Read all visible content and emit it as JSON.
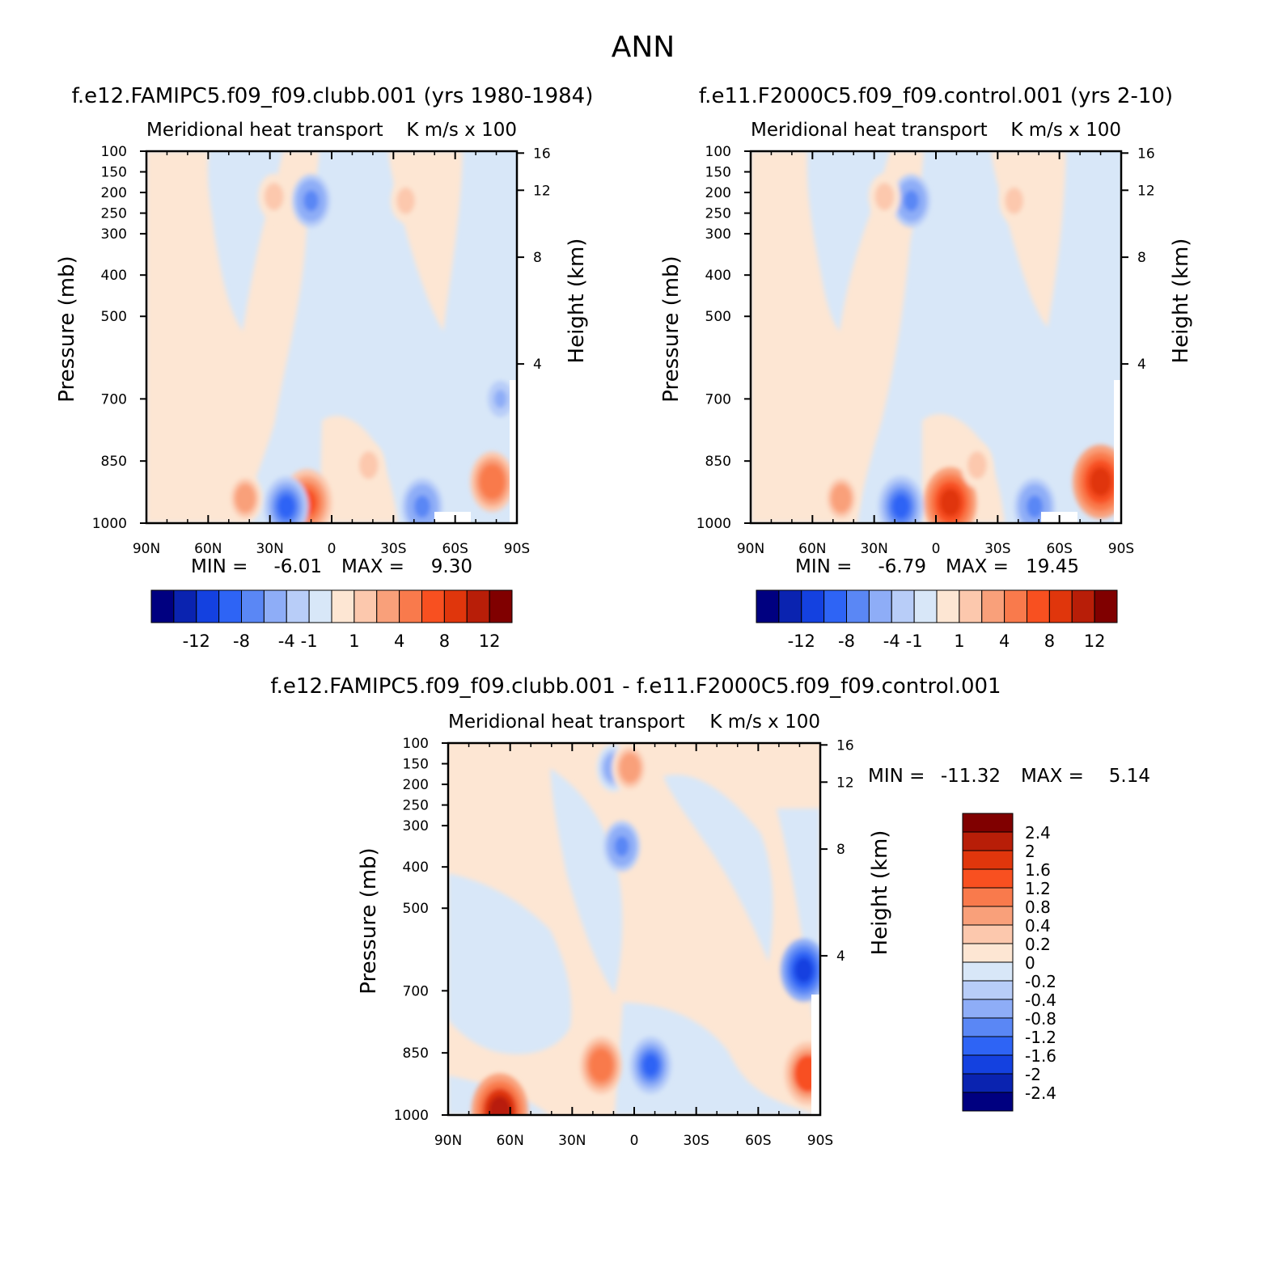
{
  "figure": {
    "season": "ANN",
    "diff_title": "f.e12.FAMIPC5.f09_f09.clubb.001 - f.e11.F2000C5.f09_f09.control.001"
  },
  "levels": {
    "abs_labels": [
      "-12",
      "-8",
      "-4",
      "-1",
      "1",
      "4",
      "8",
      "12"
    ],
    "diff_labels": [
      "2.4",
      "2",
      "1.6",
      "1.2",
      "0.8",
      "0.4",
      "0.2",
      "0",
      "-0.2",
      "-0.4",
      "-0.8",
      "-1.2",
      "-1.6",
      "-2",
      "-2.4"
    ],
    "abs_colors": [
      "#000080",
      "#0a23b0",
      "#1441e0",
      "#2e64f5",
      "#5a87f5",
      "#8eadf7",
      "#b8cdf8",
      "#d8e7f8",
      "#fde6d3",
      "#fcc8ad",
      "#f9a07a",
      "#f97a4c",
      "#f85020",
      "#e0360c",
      "#b81e08",
      "#800000"
    ],
    "diff_colors_top_to_bottom": [
      "#800000",
      "#b81e08",
      "#e0360c",
      "#f85020",
      "#f97a4c",
      "#f9a07a",
      "#fcc8ad",
      "#fde6d3",
      "#d8e7f8",
      "#b8cdf8",
      "#8eadf7",
      "#5a87f5",
      "#2e64f5",
      "#1441e0",
      "#0a23b0",
      "#000080"
    ]
  },
  "chart_data": [
    {
      "type": "heatmap",
      "title": "f.e12.FAMIPC5.f09_f09.clubb.001 (yrs 1980-1984)",
      "subtitle_left": "Meridional heat transport",
      "subtitle_right": "K m/s x 100",
      "xlabel": "",
      "ylabel": "Pressure (mb)",
      "y2label": "Height (km)",
      "x_ticklabels": [
        "90N",
        "60N",
        "30N",
        "0",
        "30S",
        "60S",
        "90S"
      ],
      "y_ticklabels": [
        "100",
        "150",
        "200",
        "250",
        "300",
        "400",
        "500",
        "700",
        "850",
        "1000"
      ],
      "y2_ticklabels": [
        "16",
        "12",
        "8",
        "4"
      ],
      "min_label": "MIN =",
      "min_value": "-6.01",
      "max_label": "MAX =",
      "max_value": "9.30",
      "features": [
        {
          "lat": 12,
          "p": 950,
          "value": 8
        },
        {
          "lat": 42,
          "p": 940,
          "value": 3
        },
        {
          "lat": -18,
          "p": 860,
          "value": 2
        },
        {
          "lat": 22,
          "p": 960,
          "value": -6
        },
        {
          "lat": -44,
          "p": 960,
          "value": -5
        },
        {
          "lat": 10,
          "p": 220,
          "value": -4
        },
        {
          "lat": 28,
          "p": 210,
          "value": 2
        },
        {
          "lat": -36,
          "p": 220,
          "value": 1.5
        },
        {
          "lat": -78,
          "p": 900,
          "value": 6
        },
        {
          "lat": -82,
          "p": 700,
          "value": -2
        }
      ]
    },
    {
      "type": "heatmap",
      "title": "f.e11.F2000C5.f09_f09.control.001 (yrs 2-10)",
      "subtitle_left": "Meridional heat transport",
      "subtitle_right": "K m/s x 100",
      "xlabel": "",
      "ylabel": "Pressure (mb)",
      "y2label": "Height (km)",
      "x_ticklabels": [
        "90N",
        "60N",
        "30N",
        "0",
        "30S",
        "60S",
        "90S"
      ],
      "y_ticklabels": [
        "100",
        "150",
        "200",
        "250",
        "300",
        "400",
        "500",
        "700",
        "850",
        "1000"
      ],
      "y2_ticklabels": [
        "16",
        "12",
        "8",
        "4"
      ],
      "min_label": "MIN =",
      "min_value": "-6.79",
      "max_label": "MAX =",
      "max_value": "19.45",
      "features": [
        {
          "lat": -7,
          "p": 950,
          "value": 9
        },
        {
          "lat": 46,
          "p": 940,
          "value": 3
        },
        {
          "lat": -20,
          "p": 860,
          "value": 2
        },
        {
          "lat": 17,
          "p": 960,
          "value": -6.5
        },
        {
          "lat": -48,
          "p": 960,
          "value": -5
        },
        {
          "lat": 12,
          "p": 220,
          "value": -4
        },
        {
          "lat": 25,
          "p": 210,
          "value": 2
        },
        {
          "lat": -38,
          "p": 220,
          "value": 1.5
        },
        {
          "lat": -80,
          "p": 900,
          "value": 10
        }
      ]
    },
    {
      "type": "heatmap",
      "title": "f.e12.FAMIPC5.f09_f09.clubb.001 - f.e11.F2000C5.f09_f09.control.001",
      "subtitle_left": "Meridional heat transport",
      "subtitle_right": "K m/s x 100",
      "xlabel": "",
      "ylabel": "Pressure (mb)",
      "y2label": "Height (km)",
      "x_ticklabels": [
        "90N",
        "60N",
        "30N",
        "0",
        "30S",
        "60S",
        "90S"
      ],
      "y_ticklabels": [
        "100",
        "150",
        "200",
        "250",
        "300",
        "400",
        "500",
        "700",
        "850",
        "1000"
      ],
      "y2_ticklabels": [
        "16",
        "12",
        "8",
        "4"
      ],
      "min_label": "MIN =",
      "min_value": "-11.32",
      "max_label": "MAX =",
      "max_value": "5.14",
      "features": [
        {
          "lat": 16,
          "p": 880,
          "value": 1.2
        },
        {
          "lat": -8,
          "p": 880,
          "value": -1.2
        },
        {
          "lat": 6,
          "p": 350,
          "value": -0.8
        },
        {
          "lat": 10,
          "p": 160,
          "value": -0.6
        },
        {
          "lat": 2,
          "p": 160,
          "value": 0.8
        },
        {
          "lat": 65,
          "p": 990,
          "value": 2.4
        },
        {
          "lat": -82,
          "p": 650,
          "value": -1.6
        },
        {
          "lat": -84,
          "p": 900,
          "value": 1.6
        }
      ]
    }
  ]
}
